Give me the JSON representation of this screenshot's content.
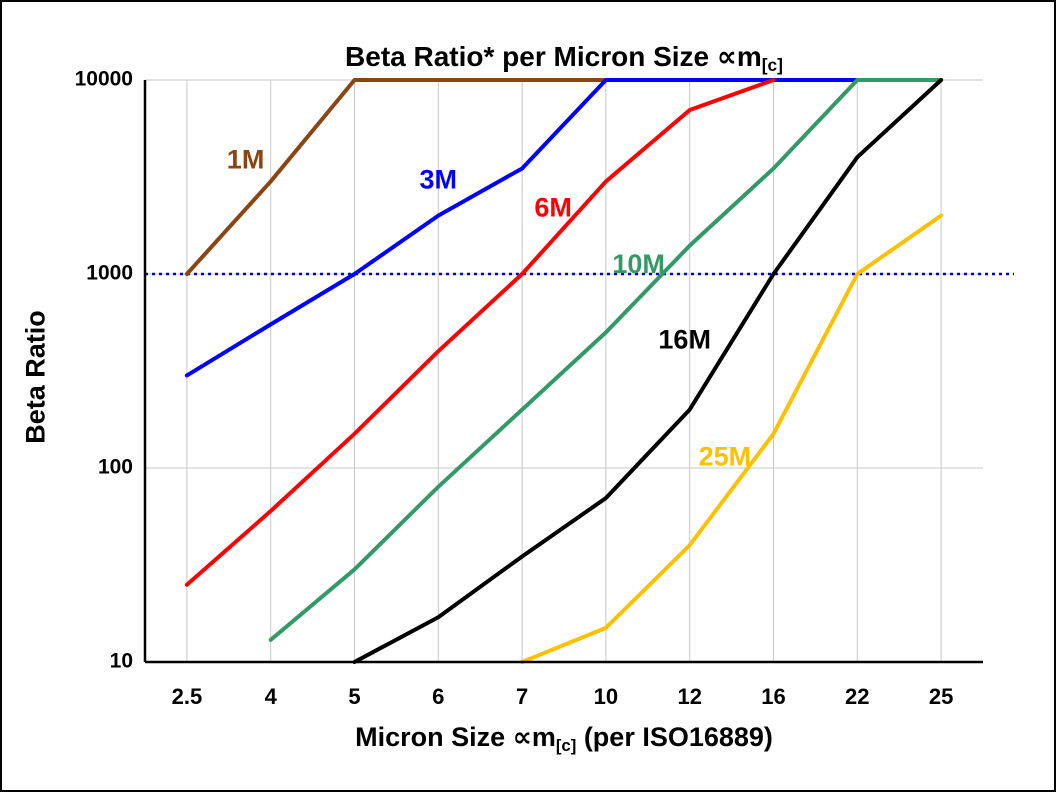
{
  "figure": {
    "background": "#FFFFFF",
    "border_color": "#000000"
  },
  "title": {
    "prefix": "Beta Ratio* per Micron Size ",
    "symbol": "∝m",
    "subscript": "[c]"
  },
  "y_axis": {
    "title": "Beta Ratio"
  },
  "x_axis": {
    "title_prefix": "Micron Size ",
    "title_symbol": "∝m",
    "title_subscript": "[c]",
    "title_suffix": " (per ISO16889)"
  },
  "chart_data": {
    "type": "line",
    "title": "Beta Ratio* per Micron Size ∝m[c]",
    "xlabel": "Micron Size ∝m[c] (per ISO16889)",
    "ylabel": "Beta Ratio",
    "x_categories": [
      "2.5",
      "4",
      "5",
      "6",
      "7",
      "10",
      "12",
      "16",
      "22",
      "25"
    ],
    "y_scale": "log",
    "y_ticks": [
      10,
      100,
      1000,
      10000
    ],
    "ylim": [
      10,
      10000
    ],
    "grid": true,
    "grid_color": "#C8C8C8",
    "axis_color": "#000000",
    "legend_position": "inline-labels",
    "reference_line": {
      "value": 1000,
      "color": "#0000CC",
      "style": "dotted"
    },
    "series": [
      {
        "name": "1M",
        "color": "#8B4513",
        "values": [
          1000,
          3000,
          10000,
          10000,
          10000,
          10000,
          null,
          null,
          null,
          null
        ],
        "label_pos": {
          "cat": 0.7,
          "value": 3800
        }
      },
      {
        "name": "3M",
        "color": "#0000FF",
        "values": [
          300,
          550,
          1000,
          2000,
          3500,
          10000,
          10000,
          10000,
          10000,
          null
        ],
        "label_pos": {
          "cat": 3.0,
          "value": 3000
        }
      },
      {
        "name": "6M",
        "color": "#FF0000",
        "values": [
          25,
          60,
          150,
          400,
          1000,
          3000,
          7000,
          10000,
          null,
          null
        ],
        "label_pos": {
          "cat": 4.37,
          "value": 2150
        }
      },
      {
        "name": "10M",
        "color": "#339966",
        "values": [
          null,
          13,
          30,
          80,
          200,
          500,
          1400,
          3500,
          10000,
          10000
        ],
        "label_pos": {
          "cat": 5.39,
          "value": 1100
        }
      },
      {
        "name": "16M",
        "color": "#000000",
        "values": [
          null,
          null,
          10,
          17,
          35,
          70,
          200,
          1000,
          4000,
          10000
        ],
        "label_pos": {
          "cat": 5.94,
          "value": 450
        }
      },
      {
        "name": "25M",
        "color": "#FFC000",
        "values": [
          null,
          null,
          null,
          null,
          10,
          15,
          40,
          150,
          1000,
          2000
        ],
        "label_pos": {
          "cat": 6.42,
          "value": 112
        }
      }
    ]
  }
}
